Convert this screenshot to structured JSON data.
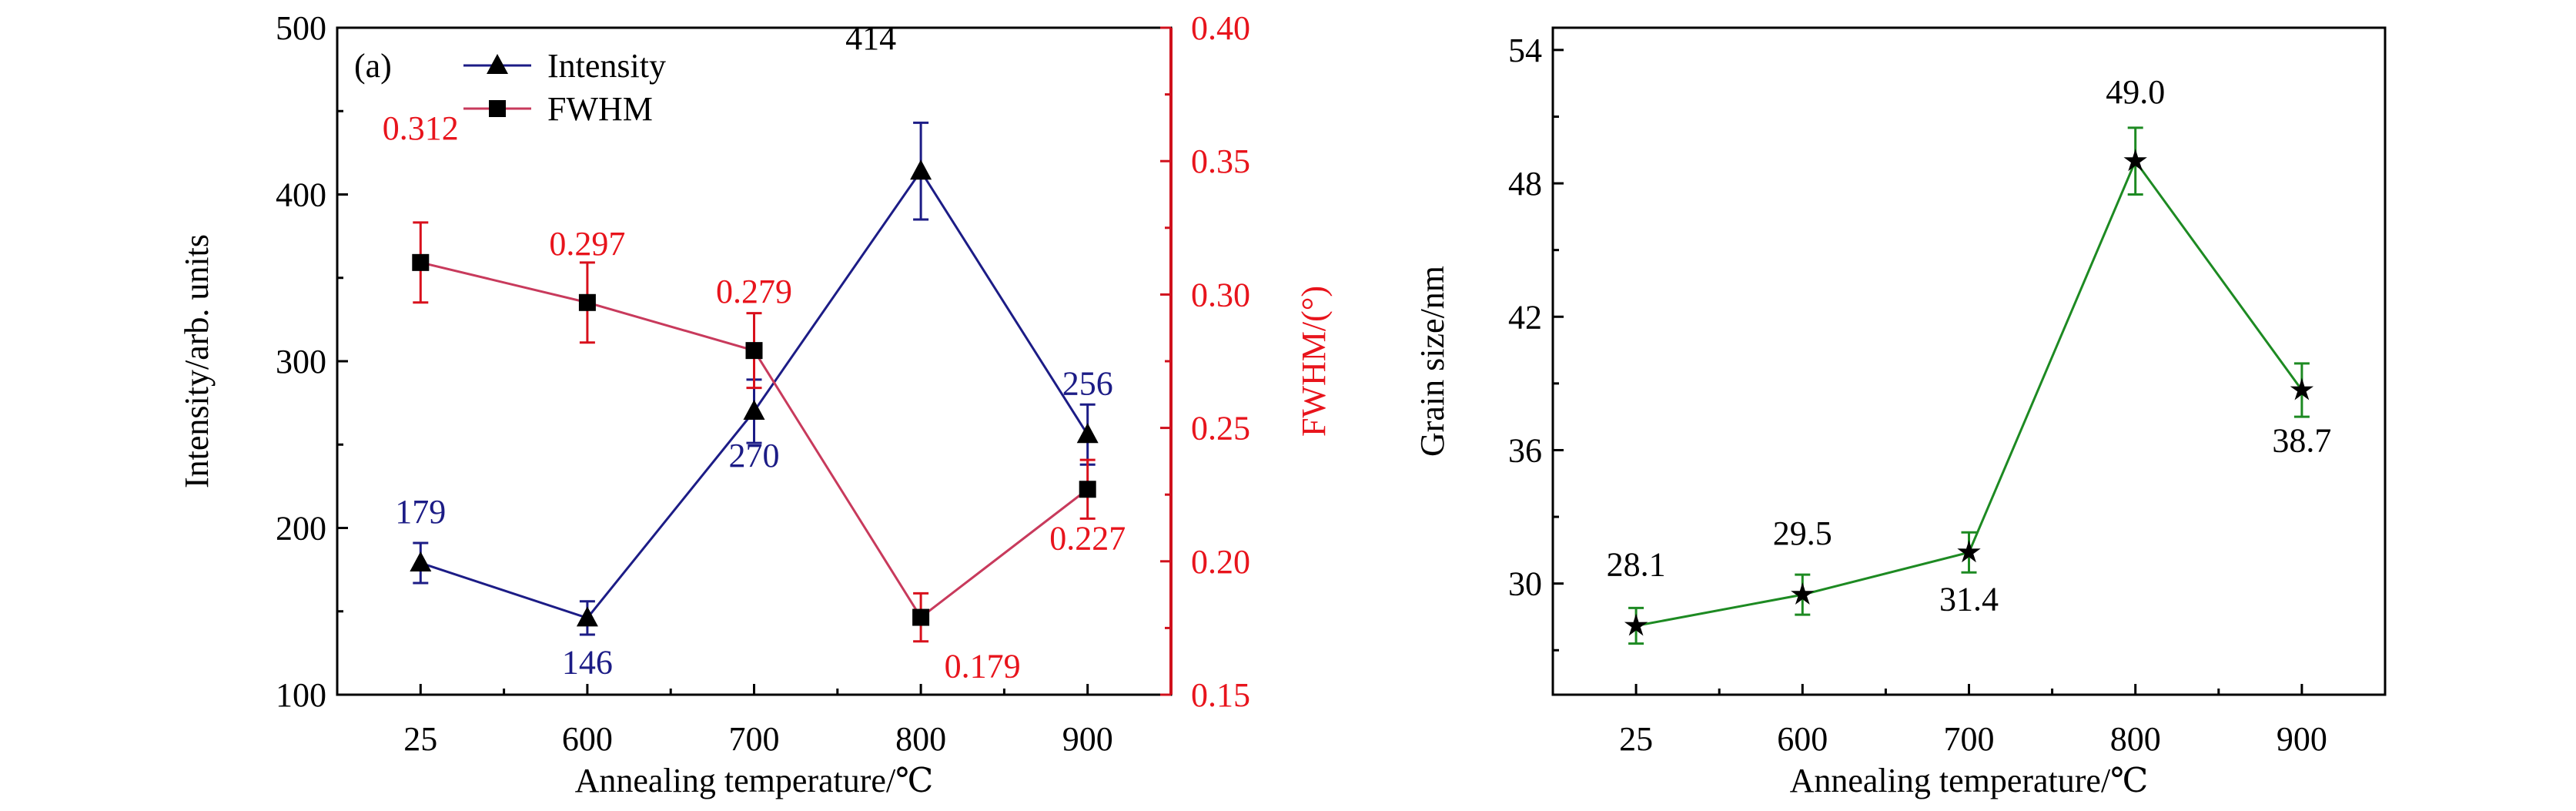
{
  "chart_data": [
    {
      "type": "line",
      "panel_label": "(a)",
      "xlabel": "Annealing temperature/℃",
      "ylabel": "Intensity/arb. units",
      "ylabel_right": "FWHM/(°)",
      "categories": [
        "25",
        "600",
        "700",
        "800",
        "900"
      ],
      "ylim": [
        100,
        500
      ],
      "yticks": [
        "100",
        "200",
        "300",
        "400",
        "500"
      ],
      "ylim_right": [
        0.15,
        0.4
      ],
      "yticks_right": [
        "0.15",
        "0.20",
        "0.25",
        "0.30",
        "0.35",
        "0.40"
      ],
      "legend_position": "top-left",
      "grid": false,
      "series": [
        {
          "name": "Intensity",
          "axis": "left",
          "marker": "triangle",
          "color": "#1c1c86",
          "values": [
            179,
            146,
            270,
            414,
            256
          ],
          "errors": [
            12,
            10,
            19,
            29,
            18
          ],
          "data_labels": [
            "179",
            "146",
            "270",
            "414",
            "256"
          ],
          "label_colors": [
            "#1c1c86",
            "#1c1c86",
            "#1c1c86",
            "#000000",
            "#1c1c86"
          ]
        },
        {
          "name": "FWHM",
          "axis": "right",
          "marker": "square",
          "color": "#c83a5c",
          "error_color": "#d8101c",
          "values": [
            0.312,
            0.297,
            0.279,
            0.179,
            0.227
          ],
          "errors": [
            0.015,
            0.015,
            0.014,
            0.009,
            0.011
          ],
          "data_labels": [
            "0.312",
            "0.297",
            "0.279",
            "0.179",
            "0.227"
          ],
          "label_colors": [
            "#e8141c",
            "#e8141c",
            "#e8141c",
            "#e8141c",
            "#e8141c"
          ]
        }
      ],
      "axis_color_right": "#d0101c"
    },
    {
      "type": "line",
      "xlabel": "Annealing temperature/℃",
      "ylabel": "Grain size/nm",
      "categories": [
        "25",
        "600",
        "700",
        "800",
        "900"
      ],
      "ylim": [
        25,
        55
      ],
      "yticks": [
        "30",
        "36",
        "42",
        "48",
        "54"
      ],
      "grid": false,
      "series": [
        {
          "marker": "star",
          "color": "#1d8a22",
          "values": [
            28.1,
            29.5,
            31.4,
            49.0,
            38.7
          ],
          "errors": [
            0.8,
            0.9,
            0.9,
            1.5,
            1.2
          ],
          "data_labels": [
            "28.1",
            "29.5",
            "31.4",
            "49.0",
            "38.7"
          ]
        }
      ]
    }
  ]
}
